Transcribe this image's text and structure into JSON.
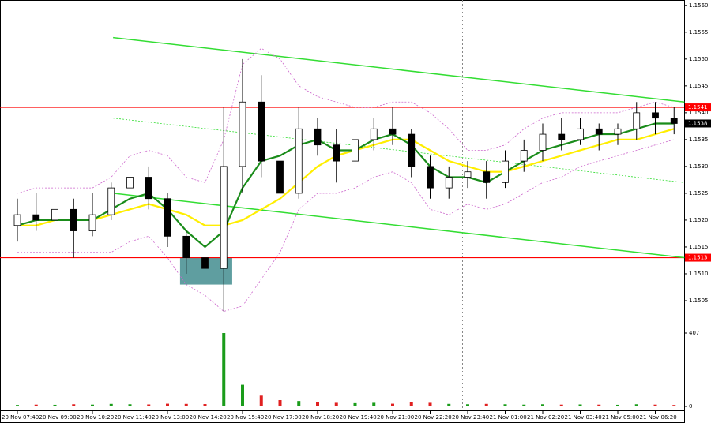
{
  "chart_data": {
    "type": "candlestick",
    "categories": [
      "20 Nov 07:40",
      null,
      "20 Nov 09:00",
      null,
      "20 Nov 10:20",
      null,
      "20 Nov 11:40",
      null,
      "20 Nov 13:00",
      null,
      "20 Nov 14:20",
      null,
      "20 Nov 15:40",
      null,
      "20 Nov 17:00",
      null,
      "20 Nov 18:20",
      null,
      "20 Nov 19:40",
      null,
      "20 Nov 21:00",
      null,
      "20 Nov 22:20",
      null,
      "20 Nov 23:40",
      null,
      "21 Nov 01:00",
      null,
      "21 Nov 02:20",
      null,
      "21 Nov 03:40",
      null,
      "21 Nov 05:00",
      null,
      "21 Nov 06:20",
      null
    ],
    "open": [
      1.1519,
      1.1521,
      1.152,
      1.1522,
      1.1518,
      1.1521,
      1.1526,
      1.1528,
      1.1524,
      1.1517,
      1.1513,
      1.1511,
      1.153,
      1.1542,
      1.1531,
      1.1525,
      1.1537,
      1.1534,
      1.1531,
      1.1535,
      1.1537,
      1.1536,
      1.153,
      1.1526,
      1.1528,
      1.1529,
      1.1527,
      1.1531,
      1.1533,
      1.1536,
      1.1535,
      1.1537,
      1.1536,
      1.1537,
      1.154,
      1.1539
    ],
    "high": [
      1.1524,
      1.1525,
      1.1523,
      1.1524,
      1.1525,
      1.1527,
      1.1531,
      1.153,
      1.1525,
      1.1518,
      1.1515,
      1.1541,
      1.155,
      1.1547,
      1.1534,
      1.1541,
      1.1539,
      1.1537,
      1.1537,
      1.1539,
      1.1541,
      1.1537,
      1.1532,
      1.153,
      1.1531,
      1.1531,
      1.1533,
      1.1535,
      1.1538,
      1.1539,
      1.1539,
      1.1538,
      1.1538,
      1.1542,
      1.1542,
      1.1541
    ],
    "low": [
      1.1516,
      1.1518,
      1.1516,
      1.1513,
      1.1517,
      1.152,
      1.1524,
      1.1522,
      1.1515,
      1.151,
      1.1508,
      1.1503,
      1.1525,
      1.1528,
      1.1521,
      1.1524,
      1.1532,
      1.1527,
      1.1529,
      1.1533,
      1.1534,
      1.1528,
      1.1524,
      1.1524,
      1.1526,
      1.1524,
      1.1526,
      1.1529,
      1.1531,
      1.1533,
      1.1534,
      1.1533,
      1.1534,
      1.1535,
      1.1536,
      1.1536
    ],
    "close": [
      1.1521,
      1.152,
      1.1522,
      1.1518,
      1.1521,
      1.1526,
      1.1528,
      1.1524,
      1.1517,
      1.1513,
      1.1511,
      1.153,
      1.1542,
      1.1531,
      1.1525,
      1.1537,
      1.1534,
      1.1531,
      1.1535,
      1.1537,
      1.1536,
      1.153,
      1.1526,
      1.1528,
      1.1529,
      1.1527,
      1.1531,
      1.1533,
      1.1536,
      1.1535,
      1.1537,
      1.1536,
      1.1537,
      1.154,
      1.1539,
      1.1538
    ],
    "series": [
      {
        "color": "#cc66cc",
        "dash": true,
        "values": [
          1.1525,
          1.1526,
          1.1526,
          1.1526,
          1.1526,
          1.1528,
          1.1532,
          1.1533,
          1.1532,
          1.1528,
          1.1527,
          1.1535,
          1.1549,
          1.1552,
          1.155,
          1.1545,
          1.1543,
          1.1542,
          1.1541,
          1.1541,
          1.1542,
          1.1542,
          1.154,
          1.1537,
          1.1533,
          1.1533,
          1.1534,
          1.1537,
          1.1539,
          1.154,
          1.154,
          1.154,
          1.154,
          1.1541,
          1.1542,
          1.1541
        ]
      },
      {
        "color": "#cc66cc",
        "dash": true,
        "values": [
          1.1514,
          1.1514,
          1.1514,
          1.1514,
          1.1514,
          1.1514,
          1.1516,
          1.1517,
          1.1513,
          1.1508,
          1.1506,
          1.1503,
          1.1504,
          1.1509,
          1.1514,
          1.1522,
          1.1525,
          1.1525,
          1.1526,
          1.1528,
          1.1529,
          1.1527,
          1.1522,
          1.1521,
          1.1523,
          1.1522,
          1.1523,
          1.1525,
          1.1527,
          1.1528,
          1.153,
          1.1531,
          1.1532,
          1.1533,
          1.1534,
          1.1535
        ]
      },
      {
        "color": "#ffee00",
        "dash": false,
        "values": [
          1.1519,
          1.1519,
          1.152,
          1.152,
          1.152,
          1.1521,
          1.1522,
          1.1523,
          1.1522,
          1.1521,
          1.1519,
          1.1519,
          1.152,
          1.1522,
          1.1524,
          1.1527,
          1.153,
          1.1532,
          1.1533,
          1.1534,
          1.1535,
          1.1535,
          1.1533,
          1.1531,
          1.153,
          1.1529,
          1.1529,
          1.153,
          1.1531,
          1.1532,
          1.1533,
          1.1534,
          1.1535,
          1.1535,
          1.1536,
          1.1537
        ]
      },
      {
        "color": "#1a8c1a",
        "dash": false,
        "values": [
          1.1519,
          1.152,
          1.152,
          1.152,
          1.152,
          1.1522,
          1.1524,
          1.1525,
          1.1522,
          1.1518,
          1.1515,
          1.1518,
          1.1526,
          1.1531,
          1.1532,
          1.1534,
          1.1535,
          1.1533,
          1.1533,
          1.1535,
          1.1536,
          1.1534,
          1.153,
          1.1528,
          1.1528,
          1.1527,
          1.1529,
          1.1531,
          1.1533,
          1.1534,
          1.1535,
          1.1536,
          1.1536,
          1.1537,
          1.1538,
          1.1538
        ]
      }
    ],
    "ylim": [
      1.15,
      1.1561
    ],
    "yticks": [
      1.1505,
      {
        "value": 1.151,
        "label": "1.1510"
      },
      1.1515,
      {
        "value": 1.152,
        "label": "1.1520"
      },
      1.1525,
      {
        "value": 1.153,
        "label": "1.1530"
      },
      1.1535,
      {
        "value": 1.154,
        "label": "1.1540"
      },
      1.1545,
      {
        "value": 1.155,
        "label": "1.1550"
      },
      1.1555,
      {
        "value": 1.156,
        "label": "1.1560"
      }
    ],
    "levels": [
      1.1541,
      1.1513
    ],
    "level_color": "#ff0000",
    "last_price": 1.1538,
    "trend_lines": [
      {
        "x": [
          5.1,
          35.55
        ],
        "y": [
          1.1554,
          1.1542
        ],
        "dash": false
      },
      {
        "x": [
          5.1,
          35.55
        ],
        "y": [
          1.1525,
          1.1513
        ],
        "dash": false
      },
      {
        "x": [
          5.1,
          35.55
        ],
        "y": [
          1.1539,
          1.1527
        ],
        "dash": true
      }
    ],
    "trend_color": "#33dd33",
    "zone": {
      "x": [
        8.67,
        11.45
      ],
      "y": [
        1.1513,
        1.1508
      ],
      "color": "#5f9ea0"
    },
    "volume": [
      8,
      10,
      9,
      12,
      10,
      14,
      12,
      11,
      15,
      14,
      13,
      407,
      120,
      60,
      35,
      30,
      25,
      20,
      18,
      20,
      15,
      22,
      20,
      14,
      12,
      14,
      12,
      10,
      12,
      10,
      11,
      10,
      9,
      12,
      10,
      8
    ],
    "vlim": [
      0,
      407
    ],
    "vticks": [
      407,
      0
    ],
    "up_color": "#1a9c1a",
    "down_color": "#e02020"
  }
}
